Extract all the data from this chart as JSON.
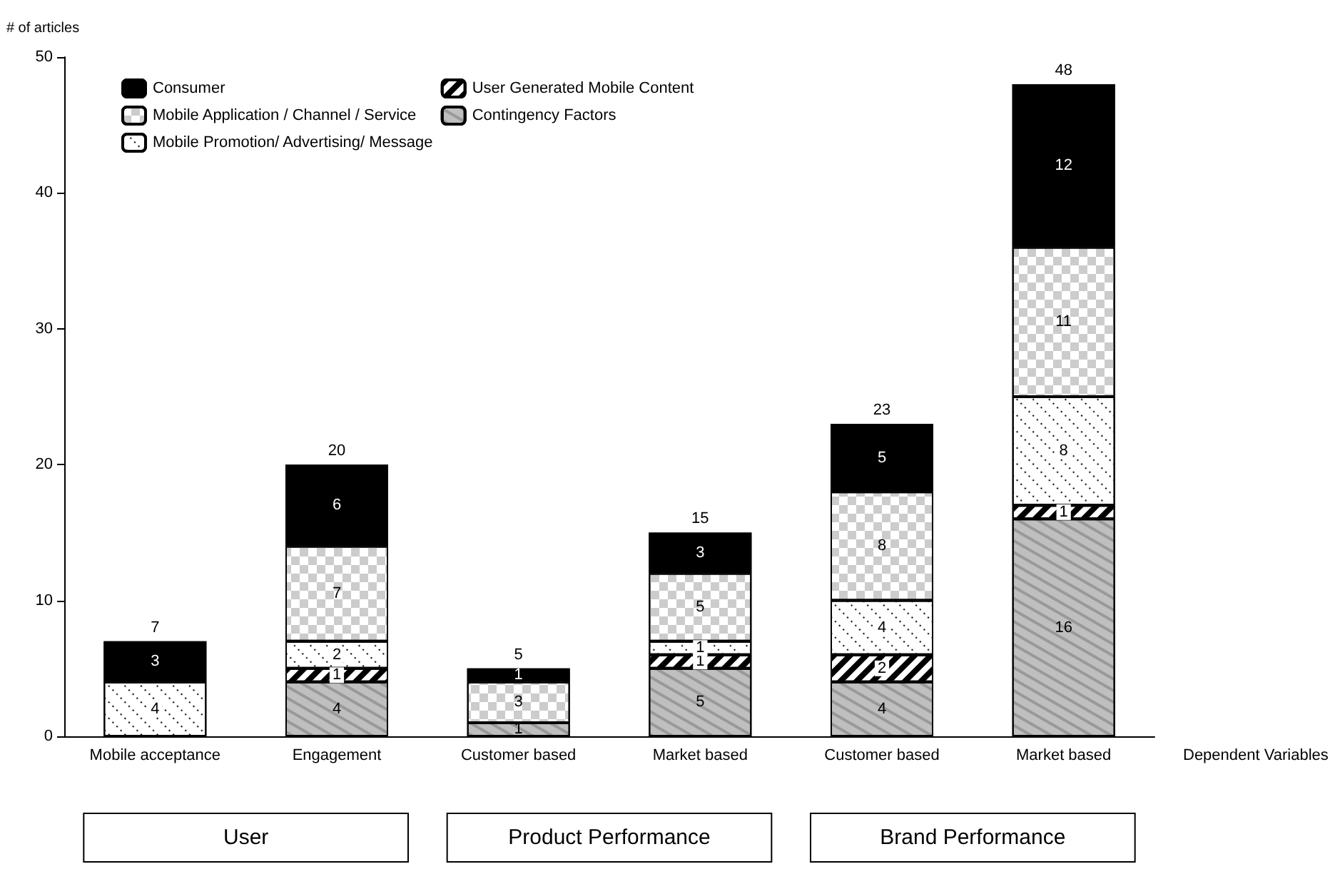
{
  "chart_data": {
    "type": "bar",
    "stacked": true,
    "ylabel": "# of articles",
    "xlabel": "Dependent Variables",
    "categories": [
      "Mobile acceptance",
      "Engagement",
      "Customer based",
      "Market based",
      "Customer based",
      "Market based"
    ],
    "series": [
      {
        "name": "Contingency Factors",
        "color": "#bfbfbf",
        "values": [
          null,
          4,
          1,
          5,
          4,
          16
        ]
      },
      {
        "name": "User Generated Mobile Content",
        "color": "#ffffff",
        "values": [
          null,
          1,
          null,
          1,
          2,
          1
        ]
      },
      {
        "name": "Mobile Promotion/ Advertising/ Message",
        "color": "#ffffff",
        "values": [
          4,
          2,
          null,
          1,
          4,
          8
        ]
      },
      {
        "name": "Mobile Application / Channel / Service",
        "color": "#ffffff",
        "values": [
          null,
          7,
          3,
          5,
          8,
          11
        ]
      },
      {
        "name": "Consumer",
        "color": "#000000",
        "values": [
          3,
          6,
          1,
          3,
          5,
          12
        ]
      }
    ],
    "totals": [
      "7",
      "20",
      "5",
      "15",
      "23",
      "48"
    ],
    "annotations": [
      "User",
      "Product Performance",
      "Brand Performance"
    ],
    "ylim": [
      0,
      50
    ],
    "yticks": [
      0,
      10,
      20,
      30,
      40,
      50
    ],
    "grid": false,
    "legend": "top left",
    "data_labels": true
  }
}
